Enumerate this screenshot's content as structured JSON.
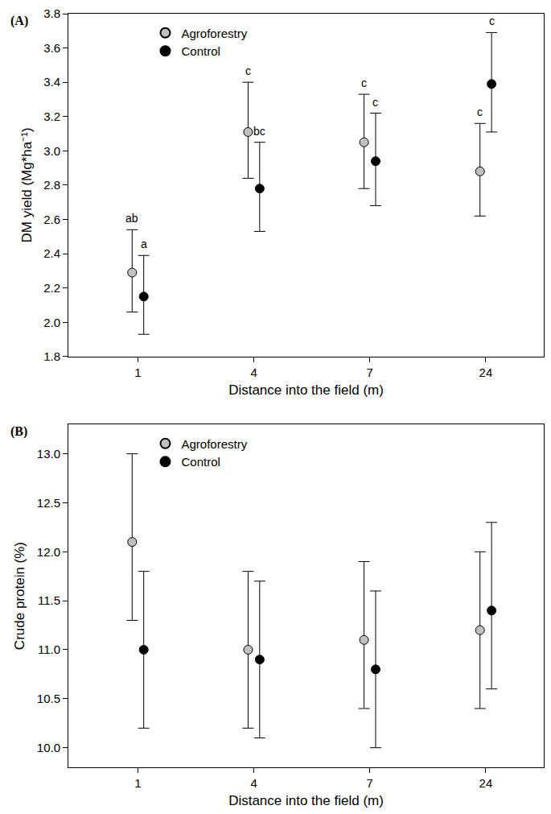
{
  "chart_data": [
    {
      "type": "scatter",
      "title": "(A)",
      "x_label": "Distance into the field (m)",
      "y_label": "DM yield (Mg*ha⁻¹)",
      "categories": [
        "1",
        "4",
        "7",
        "24"
      ],
      "ylim": [
        1.8,
        3.8
      ],
      "yticks": [
        1.8,
        {
          "value": 2,
          "label": "2.0"
        },
        2.2,
        2.4,
        2.6,
        2.8,
        {
          "value": 3,
          "label": "3.0"
        },
        3.2,
        3.4,
        3.6,
        3.8
      ],
      "grid": false,
      "legend": "upper left",
      "series": [
        {
          "name": "Agroforestry",
          "color": "#c0c0c0",
          "marker": "circle",
          "values": [
            2.29,
            3.11,
            3.05,
            2.88
          ],
          "lower": [
            2.06,
            2.84,
            2.78,
            2.62
          ],
          "upper": [
            2.54,
            3.4,
            3.33,
            3.16
          ],
          "letters": [
            "ab",
            "c",
            "c",
            "c"
          ]
        },
        {
          "name": "Control",
          "color": "#000000",
          "marker": "circle",
          "values": [
            2.15,
            2.78,
            2.94,
            3.39
          ],
          "lower": [
            1.93,
            2.53,
            2.68,
            3.11
          ],
          "upper": [
            2.39,
            3.05,
            3.22,
            3.69
          ],
          "letters": [
            "a",
            "bc",
            "c",
            "c"
          ]
        }
      ]
    },
    {
      "type": "scatter",
      "title": "(B)",
      "x_label": "Distance into the field (m)",
      "y_label": "Crude protein (%)",
      "categories": [
        "1",
        "4",
        "7",
        "24"
      ],
      "ylim": [
        9.8,
        13.3
      ],
      "yticks": [
        {
          "value": 10,
          "label": "10.0"
        },
        10.5,
        {
          "value": 11,
          "label": "11.0"
        },
        11.5,
        {
          "value": 12,
          "label": "12.0"
        },
        12.5,
        {
          "value": 13,
          "label": "13.0"
        }
      ],
      "grid": false,
      "legend": "upper left",
      "series": [
        {
          "name": "Agroforestry",
          "color": "#c0c0c0",
          "marker": "circle",
          "values": [
            12.1,
            11.0,
            11.1,
            11.2
          ],
          "lower": [
            11.3,
            10.2,
            10.4,
            10.4
          ],
          "upper": [
            13.0,
            11.8,
            11.9,
            12.0
          ]
        },
        {
          "name": "Control",
          "color": "#000000",
          "marker": "circle",
          "values": [
            11.0,
            10.9,
            10.8,
            11.4
          ],
          "lower": [
            10.2,
            10.1,
            10.0,
            10.6
          ],
          "upper": [
            11.8,
            11.7,
            11.6,
            12.3
          ]
        }
      ]
    }
  ]
}
